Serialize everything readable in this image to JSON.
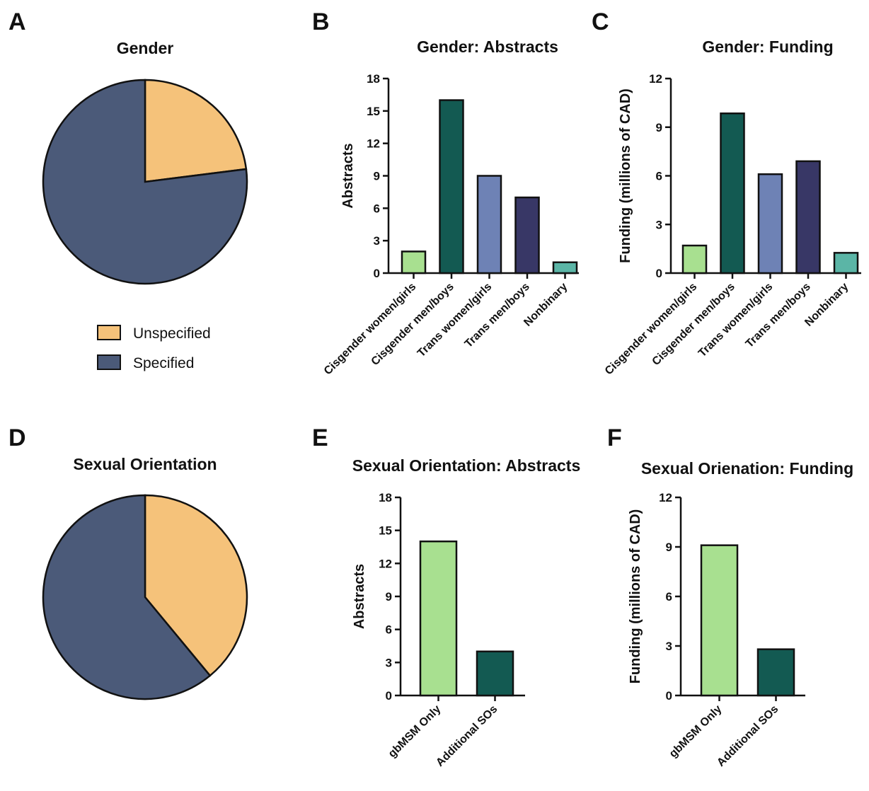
{
  "panels": {
    "a": "A",
    "b": "B",
    "c": "C",
    "d": "D",
    "e": "E",
    "f": "F"
  },
  "colors": {
    "unspecified": "#F5C27A",
    "specified": "#4B5A79",
    "cat1": "#A8E090",
    "cat2": "#135A52",
    "cat3": "#6E82B5",
    "cat4": "#383766",
    "cat5": "#5BB5A6"
  },
  "legend": {
    "unspecified": "Unspecified",
    "specified": "Specified"
  },
  "chart_data": [
    {
      "id": "A",
      "type": "pie",
      "title": "Gender",
      "labels": [
        "Unspecified",
        "Specified"
      ],
      "values": [
        23,
        77
      ]
    },
    {
      "id": "B",
      "type": "bar",
      "title": "Gender: Abstracts",
      "xlabel": "",
      "ylabel": "Abstracts",
      "categories": [
        "Cisgender women/girls",
        "Cisgender men/boys",
        "Trans women/girls",
        "Trans men/boys",
        "Nonbinary"
      ],
      "values": [
        2,
        16,
        9,
        7,
        1
      ],
      "ylim": [
        0,
        18
      ],
      "yticks": [
        "0",
        "3",
        "6",
        "9",
        "12",
        "15",
        "18"
      ]
    },
    {
      "id": "C",
      "type": "bar",
      "title": "Gender: Funding",
      "xlabel": "",
      "ylabel": "Funding (millions of CAD)",
      "categories": [
        "Cisgender women/girls",
        "Cisgender men/boys",
        "Trans women/girls",
        "Trans men/boys",
        "Nonbinary"
      ],
      "values": [
        1.7,
        9.85,
        6.1,
        6.9,
        1.25
      ],
      "ylim": [
        0,
        12
      ],
      "yticks": [
        "0",
        "3",
        "6",
        "9",
        "12"
      ]
    },
    {
      "id": "D",
      "type": "pie",
      "title": "Sexual Orientation",
      "labels": [
        "Unspecified",
        "Specified"
      ],
      "values": [
        39,
        61
      ]
    },
    {
      "id": "E",
      "type": "bar",
      "title": "Sexual Orientation: Abstracts",
      "xlabel": "",
      "ylabel": "Abstracts",
      "categories": [
        "gbMSM Only",
        "Additional SOs"
      ],
      "values": [
        14,
        4
      ],
      "ylim": [
        0,
        18
      ],
      "yticks": [
        "0",
        "3",
        "6",
        "9",
        "12",
        "15",
        "18"
      ]
    },
    {
      "id": "F",
      "type": "bar",
      "title": "Sexual Orienation: Funding",
      "xlabel": "",
      "ylabel": "Funding (millions of CAD)",
      "categories": [
        "gbMSM Only",
        "Additional SOs"
      ],
      "values": [
        9.1,
        2.8
      ],
      "ylim": [
        0,
        12
      ],
      "yticks": [
        "0",
        "3",
        "6",
        "9",
        "12"
      ]
    }
  ]
}
